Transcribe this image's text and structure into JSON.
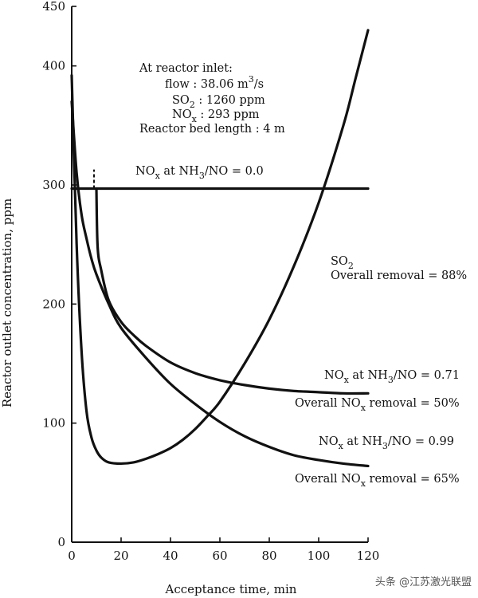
{
  "chart_data": {
    "type": "line",
    "xlabel": "Acceptance time, min",
    "ylabel": "Reactor outlet concentration, ppm",
    "xlim": [
      0,
      120
    ],
    "ylim": [
      0,
      450
    ],
    "xticks": [
      "0",
      "20",
      "40",
      "60",
      "80",
      "100",
      "120"
    ],
    "yticks": [
      "0",
      "100",
      "200",
      "300",
      "400",
      "450"
    ],
    "inlet_note": {
      "title": "At reactor inlet:",
      "flow_prefix": "flow : 38.06 m",
      "flow_exp": "3",
      "flow_suffix": "/s",
      "so2_label": "SO",
      "so2_sub": "2",
      "so2_value": " : 1260 ppm",
      "nox_label": "NO",
      "nox_sub": "x",
      "nox_value": " : 293 ppm",
      "bed": "Reactor bed length : 4 m"
    },
    "series": [
      {
        "name": "NOx at NH3/NO = 0.0",
        "label_main": "NO",
        "label_sub": "x",
        "label_mid": " at NH",
        "label_sub2": "3",
        "label_end": "/NO = 0.0",
        "x": [
          0,
          120
        ],
        "y": [
          297,
          297
        ]
      },
      {
        "name": "SO2",
        "label_main": "SO",
        "label_sub": "2",
        "removal": "Overall removal = 88%",
        "x": [
          0,
          2,
          4,
          6,
          8,
          10,
          12,
          15,
          20,
          25,
          30,
          35,
          40,
          45,
          50,
          55,
          60,
          70,
          80,
          90,
          100,
          110,
          115,
          120
        ],
        "y": [
          392,
          250,
          160,
          110,
          88,
          77,
          71,
          67,
          66,
          67,
          70,
          74,
          79,
          86,
          95,
          106,
          118,
          150,
          187,
          232,
          285,
          350,
          390,
          430
        ]
      },
      {
        "name": "NOx at NH3/NO = 0.71",
        "label_main": "NO",
        "label_sub": "x",
        "label_mid": " at NH",
        "label_sub2": "3",
        "label_end": "/NO = 0.71",
        "removal_prefix": "Overall NO",
        "removal_sub": "x",
        "removal_suffix": " removal = 50%",
        "x": [
          10,
          10.5,
          12,
          15,
          20,
          25,
          30,
          40,
          50,
          60,
          70,
          80,
          90,
          100,
          110,
          120
        ],
        "y": [
          297,
          248,
          228,
          203,
          185,
          174,
          165,
          151,
          142,
          136,
          132,
          129,
          127,
          126,
          125,
          125
        ]
      },
      {
        "name": "NOx at NH3/NO = 0.99",
        "label_main": "NO",
        "label_sub": "x",
        "label_mid": " at NH",
        "label_sub2": "3",
        "label_end": "/NO = 0.99",
        "removal_prefix": "Overall NO",
        "removal_sub": "x",
        "removal_suffix": " removal = 65%",
        "x": [
          0,
          2,
          4,
          6,
          8,
          10,
          15,
          20,
          30,
          40,
          50,
          60,
          70,
          80,
          90,
          100,
          110,
          120
        ],
        "y": [
          370,
          310,
          275,
          255,
          238,
          225,
          200,
          180,
          155,
          133,
          116,
          101,
          89,
          80,
          73,
          69,
          66,
          64
        ]
      }
    ],
    "marker_dashed_x": 10
  },
  "watermark": "头条 @江苏激光联盟"
}
